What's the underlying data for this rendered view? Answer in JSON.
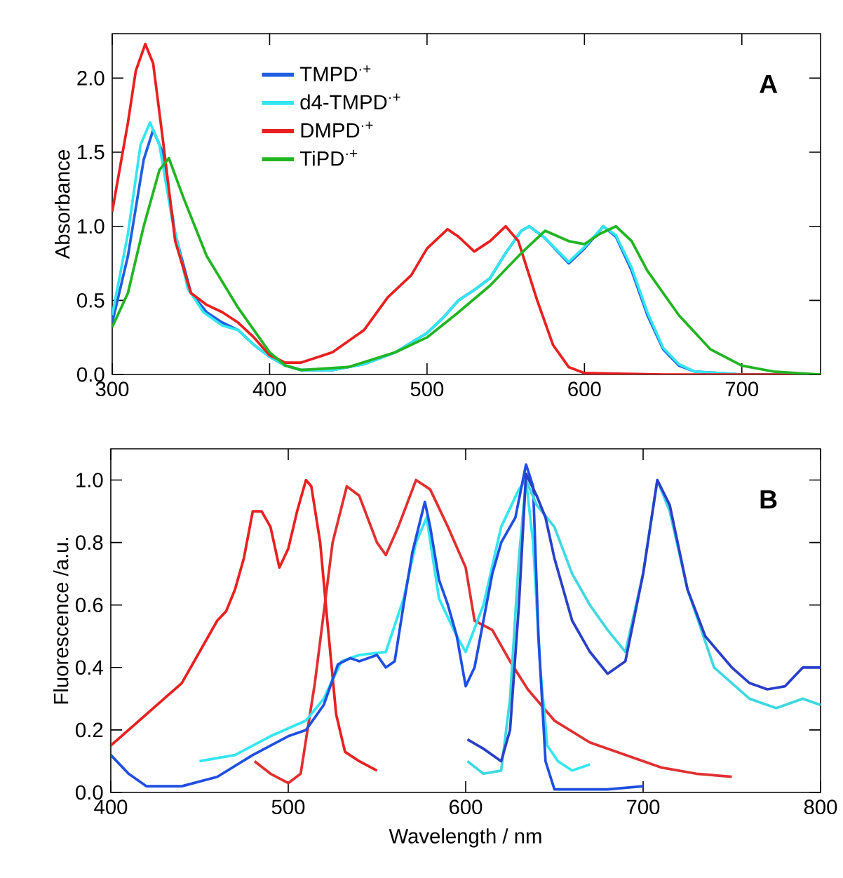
{
  "chart_data": [
    {
      "type": "line",
      "ylabel": "Absorbance",
      "xlim": [
        300,
        750
      ],
      "ylim": [
        0,
        2.3
      ],
      "xticks": [
        300,
        400,
        500,
        600,
        700
      ],
      "yticks": [
        {
          "value": 0,
          "label": "0.0"
        },
        {
          "value": 0.5,
          "label": "0.5"
        },
        {
          "value": 1,
          "label": "1.0"
        },
        {
          "value": 1.5,
          "label": "1.5"
        },
        {
          "value": 2,
          "label": "2.0"
        }
      ],
      "legend": "top left",
      "grid": false,
      "annotations": [
        "A"
      ],
      "series": [
        {
          "name": "TMPD$^{·+}$",
          "color": "#1f5fe0",
          "x": [
            300,
            310,
            320,
            326,
            332,
            340,
            350,
            360,
            370,
            380,
            390,
            400,
            410,
            420,
            440,
            460,
            480,
            500,
            510,
            520,
            530,
            540,
            550,
            560,
            565,
            575,
            590,
            600,
            612,
            620,
            630,
            640,
            650,
            660,
            670,
            700,
            750
          ],
          "values": [
            0.35,
            0.8,
            1.45,
            1.65,
            1.5,
            0.95,
            0.55,
            0.42,
            0.35,
            0.3,
            0.2,
            0.12,
            0.06,
            0.03,
            0.03,
            0.07,
            0.15,
            0.28,
            0.38,
            0.5,
            0.57,
            0.65,
            0.82,
            0.97,
            1.0,
            0.92,
            0.75,
            0.85,
            1.0,
            0.93,
            0.7,
            0.4,
            0.17,
            0.06,
            0.02,
            0,
            0
          ]
        },
        {
          "name": "d4-TMPD$^{·+}$",
          "color": "#33e6f0",
          "x": [
            300,
            310,
            318,
            324,
            330,
            338,
            348,
            358,
            370,
            380,
            390,
            400,
            410,
            420,
            440,
            460,
            480,
            500,
            510,
            520,
            530,
            540,
            550,
            560,
            565,
            575,
            590,
            600,
            612,
            620,
            630,
            640,
            650,
            660,
            670,
            700,
            750
          ],
          "values": [
            0.4,
            0.95,
            1.55,
            1.7,
            1.55,
            1.05,
            0.58,
            0.42,
            0.33,
            0.3,
            0.2,
            0.12,
            0.06,
            0.03,
            0.03,
            0.07,
            0.15,
            0.28,
            0.38,
            0.5,
            0.57,
            0.65,
            0.82,
            0.97,
            1.0,
            0.92,
            0.76,
            0.86,
            1.0,
            0.94,
            0.72,
            0.42,
            0.18,
            0.07,
            0.02,
            0,
            0
          ]
        },
        {
          "name": "DMPD$^{·+}$",
          "color": "#e82020",
          "x": [
            300,
            310,
            315,
            321,
            326,
            332,
            340,
            350,
            360,
            370,
            380,
            390,
            400,
            410,
            420,
            440,
            460,
            475,
            490,
            500,
            513,
            520,
            530,
            540,
            550,
            558,
            570,
            580,
            590,
            600,
            650,
            750
          ],
          "values": [
            1.1,
            1.7,
            2.05,
            2.23,
            2.1,
            1.6,
            0.9,
            0.55,
            0.47,
            0.42,
            0.35,
            0.25,
            0.13,
            0.08,
            0.08,
            0.15,
            0.3,
            0.52,
            0.67,
            0.85,
            0.98,
            0.93,
            0.83,
            0.9,
            1.0,
            0.9,
            0.5,
            0.2,
            0.05,
            0.01,
            0,
            0
          ]
        },
        {
          "name": "TiPD$^{·+}$",
          "color": "#22b522",
          "x": [
            300,
            310,
            320,
            330,
            336,
            345,
            360,
            380,
            400,
            410,
            420,
            450,
            480,
            500,
            520,
            540,
            560,
            575,
            590,
            600,
            610,
            620,
            630,
            640,
            660,
            680,
            700,
            720,
            750
          ],
          "values": [
            0.32,
            0.55,
            1.0,
            1.38,
            1.46,
            1.2,
            0.8,
            0.45,
            0.15,
            0.06,
            0.03,
            0.05,
            0.15,
            0.25,
            0.42,
            0.6,
            0.82,
            0.97,
            0.9,
            0.88,
            0.95,
            1.0,
            0.9,
            0.7,
            0.4,
            0.17,
            0.06,
            0.02,
            0
          ]
        }
      ]
    },
    {
      "type": "line",
      "xlabel": "Wavelength / nm",
      "ylabel": "Fluorescence /a.u.",
      "xlim": [
        400,
        800
      ],
      "ylim": [
        0,
        1.1
      ],
      "xticks": [
        400,
        500,
        600,
        700,
        800
      ],
      "yticks": [
        {
          "value": 0,
          "label": "0.0"
        },
        {
          "value": 0.2,
          "label": "0.2"
        },
        {
          "value": 0.4,
          "label": "0.4"
        },
        {
          "value": 0.6,
          "label": "0.6"
        },
        {
          "value": 0.8,
          "label": "0.8"
        },
        {
          "value": 1,
          "label": "1.0"
        }
      ],
      "grid": false,
      "annotations": [
        "B"
      ],
      "series": [
        {
          "color": "#e82020",
          "x": [
            400,
            410,
            420,
            430,
            440,
            450,
            460,
            465,
            470,
            475,
            480,
            485,
            490,
            495,
            500,
            505,
            510,
            513,
            518,
            522,
            527,
            532,
            540,
            550
          ],
          "values": [
            0.15,
            0.2,
            0.25,
            0.3,
            0.35,
            0.45,
            0.55,
            0.58,
            0.65,
            0.75,
            0.9,
            0.9,
            0.85,
            0.72,
            0.78,
            0.9,
            1.0,
            0.98,
            0.8,
            0.55,
            0.25,
            0.13,
            0.1,
            0.07
          ]
        },
        {
          "color": "#e03030",
          "x": [
            481,
            490,
            500,
            507,
            515,
            525,
            533,
            540,
            550,
            555,
            562,
            572,
            580,
            590,
            600,
            605,
            615,
            625,
            635,
            650,
            670,
            690,
            710,
            730,
            750
          ],
          "values": [
            0.1,
            0.06,
            0.03,
            0.06,
            0.35,
            0.8,
            0.98,
            0.95,
            0.8,
            0.76,
            0.85,
            1.0,
            0.97,
            0.85,
            0.72,
            0.55,
            0.52,
            0.42,
            0.33,
            0.23,
            0.16,
            0.12,
            0.08,
            0.06,
            0.05
          ]
        },
        {
          "color": "#33e6f0",
          "x": [
            450,
            470,
            490,
            510,
            520,
            530,
            540,
            555,
            565,
            572,
            578,
            585,
            595,
            600,
            610,
            620,
            630,
            634,
            638,
            642,
            646,
            652,
            660,
            670
          ],
          "values": [
            0.1,
            0.12,
            0.18,
            0.23,
            0.3,
            0.42,
            0.44,
            0.45,
            0.62,
            0.8,
            0.88,
            0.62,
            0.5,
            0.45,
            0.6,
            0.85,
            0.97,
            1.0,
            0.8,
            0.4,
            0.15,
            0.1,
            0.07,
            0.09
          ]
        },
        {
          "color": "#1f4fe0",
          "x": [
            400,
            410,
            420,
            440,
            460,
            480,
            500,
            510,
            520,
            528,
            535,
            540,
            550,
            555,
            560,
            565,
            570,
            577,
            580,
            585,
            590,
            595,
            600,
            605,
            615,
            620,
            628,
            634,
            638,
            641,
            645,
            650,
            680,
            700
          ],
          "values": [
            0.12,
            0.06,
            0.02,
            0.02,
            0.05,
            0.12,
            0.18,
            0.2,
            0.28,
            0.41,
            0.43,
            0.42,
            0.44,
            0.4,
            0.42,
            0.6,
            0.77,
            0.93,
            0.85,
            0.68,
            0.6,
            0.5,
            0.34,
            0.4,
            0.7,
            0.8,
            0.88,
            1.05,
            0.98,
            0.5,
            0.1,
            0.01,
            0.01,
            0.02
          ]
        },
        {
          "color": "#40d8e0",
          "x": [
            601,
            610,
            620,
            625,
            630,
            634,
            640,
            650,
            660,
            670,
            680,
            690,
            700,
            708,
            715,
            725,
            740,
            760,
            775,
            790,
            800
          ],
          "values": [
            0.1,
            0.06,
            0.07,
            0.3,
            0.75,
            1.0,
            0.92,
            0.85,
            0.7,
            0.6,
            0.52,
            0.45,
            0.7,
            1.0,
            0.9,
            0.65,
            0.4,
            0.3,
            0.27,
            0.3,
            0.28
          ]
        },
        {
          "color": "#2a40c8",
          "x": [
            601,
            610,
            620,
            625,
            630,
            634,
            640,
            645,
            650,
            660,
            670,
            680,
            690,
            700,
            708,
            715,
            725,
            735,
            750,
            760,
            770,
            780,
            790,
            800
          ],
          "values": [
            0.17,
            0.14,
            0.1,
            0.2,
            0.6,
            1.02,
            0.95,
            0.88,
            0.75,
            0.55,
            0.45,
            0.38,
            0.42,
            0.7,
            1.0,
            0.92,
            0.65,
            0.5,
            0.4,
            0.35,
            0.33,
            0.34,
            0.4,
            0.4
          ]
        }
      ]
    }
  ]
}
